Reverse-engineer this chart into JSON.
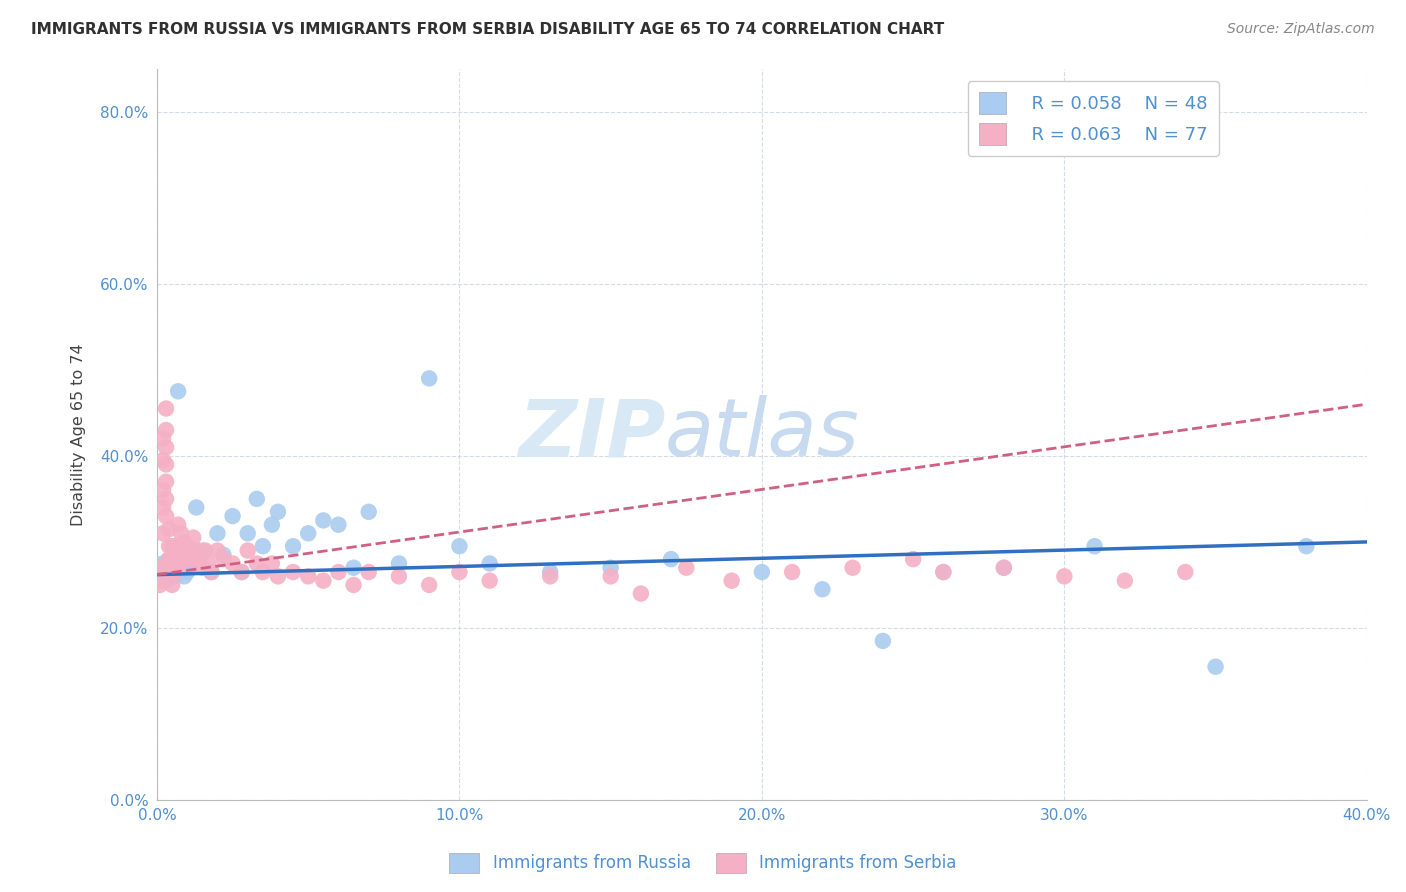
{
  "title": "IMMIGRANTS FROM RUSSIA VS IMMIGRANTS FROM SERBIA DISABILITY AGE 65 TO 74 CORRELATION CHART",
  "source": "Source: ZipAtlas.com",
  "ylabel": "Disability Age 65 to 74",
  "xlim": [
    0.0,
    0.4
  ],
  "ylim": [
    0.0,
    0.85
  ],
  "x_ticks": [
    0.0,
    0.1,
    0.2,
    0.3,
    0.4
  ],
  "x_tick_labels": [
    "0.0%",
    "10.0%",
    "20.0%",
    "30.0%",
    "40.0%"
  ],
  "y_ticks": [
    0.0,
    0.2,
    0.4,
    0.6,
    0.8
  ],
  "y_tick_labels": [
    "0.0%",
    "20.0%",
    "40.0%",
    "60.0%",
    "80.0%"
  ],
  "russia_R": 0.058,
  "russia_N": 48,
  "serbia_R": 0.063,
  "serbia_N": 77,
  "russia_color": "#aaccf0",
  "serbia_color": "#f5b0c5",
  "russia_line_color": "#3070c0",
  "serbia_line_color": "#d06080",
  "title_color": "#303030",
  "axis_color": "#5090d0",
  "watermark_color": "#d8e8f5",
  "russia_x": [
    0.001,
    0.002,
    0.002,
    0.003,
    0.003,
    0.004,
    0.005,
    0.005,
    0.006,
    0.007,
    0.008,
    0.009,
    0.01,
    0.011,
    0.012,
    0.013,
    0.015,
    0.018,
    0.02,
    0.022,
    0.025,
    0.028,
    0.03,
    0.033,
    0.035,
    0.038,
    0.04,
    0.045,
    0.05,
    0.055,
    0.06,
    0.065,
    0.07,
    0.08,
    0.09,
    0.1,
    0.11,
    0.13,
    0.15,
    0.17,
    0.2,
    0.22,
    0.24,
    0.26,
    0.28,
    0.31,
    0.35,
    0.38
  ],
  "russia_y": [
    0.26,
    0.275,
    0.265,
    0.27,
    0.255,
    0.28,
    0.265,
    0.27,
    0.26,
    0.475,
    0.27,
    0.26,
    0.265,
    0.27,
    0.275,
    0.34,
    0.29,
    0.265,
    0.31,
    0.285,
    0.33,
    0.265,
    0.31,
    0.35,
    0.295,
    0.32,
    0.335,
    0.295,
    0.31,
    0.325,
    0.32,
    0.27,
    0.335,
    0.275,
    0.49,
    0.295,
    0.275,
    0.265,
    0.27,
    0.28,
    0.265,
    0.245,
    0.185,
    0.265,
    0.27,
    0.295,
    0.155,
    0.295
  ],
  "serbia_x": [
    0.001,
    0.001,
    0.001,
    0.001,
    0.001,
    0.002,
    0.002,
    0.002,
    0.002,
    0.002,
    0.002,
    0.003,
    0.003,
    0.003,
    0.003,
    0.003,
    0.003,
    0.003,
    0.004,
    0.004,
    0.004,
    0.004,
    0.005,
    0.005,
    0.005,
    0.005,
    0.006,
    0.006,
    0.006,
    0.007,
    0.007,
    0.007,
    0.008,
    0.008,
    0.009,
    0.009,
    0.01,
    0.011,
    0.012,
    0.013,
    0.014,
    0.015,
    0.016,
    0.017,
    0.018,
    0.02,
    0.022,
    0.025,
    0.028,
    0.03,
    0.033,
    0.035,
    0.038,
    0.04,
    0.045,
    0.05,
    0.055,
    0.06,
    0.065,
    0.07,
    0.08,
    0.09,
    0.1,
    0.11,
    0.13,
    0.15,
    0.16,
    0.175,
    0.19,
    0.21,
    0.23,
    0.25,
    0.26,
    0.28,
    0.3,
    0.32,
    0.34
  ],
  "serbia_y": [
    0.27,
    0.26,
    0.255,
    0.265,
    0.25,
    0.42,
    0.395,
    0.36,
    0.34,
    0.31,
    0.265,
    0.455,
    0.43,
    0.41,
    0.39,
    0.37,
    0.35,
    0.33,
    0.315,
    0.295,
    0.28,
    0.265,
    0.295,
    0.28,
    0.265,
    0.25,
    0.295,
    0.28,
    0.265,
    0.32,
    0.295,
    0.27,
    0.31,
    0.29,
    0.3,
    0.28,
    0.295,
    0.28,
    0.305,
    0.29,
    0.28,
    0.27,
    0.29,
    0.275,
    0.265,
    0.29,
    0.28,
    0.275,
    0.265,
    0.29,
    0.275,
    0.265,
    0.275,
    0.26,
    0.265,
    0.26,
    0.255,
    0.265,
    0.25,
    0.265,
    0.26,
    0.25,
    0.265,
    0.255,
    0.26,
    0.26,
    0.24,
    0.27,
    0.255,
    0.265,
    0.27,
    0.28,
    0.265,
    0.27,
    0.26,
    0.255,
    0.265
  ],
  "russia_line_x": [
    0.0,
    0.4
  ],
  "russia_line_y": [
    0.262,
    0.3
  ],
  "serbia_line_x": [
    0.0,
    0.4
  ],
  "serbia_line_y": [
    0.262,
    0.46
  ]
}
